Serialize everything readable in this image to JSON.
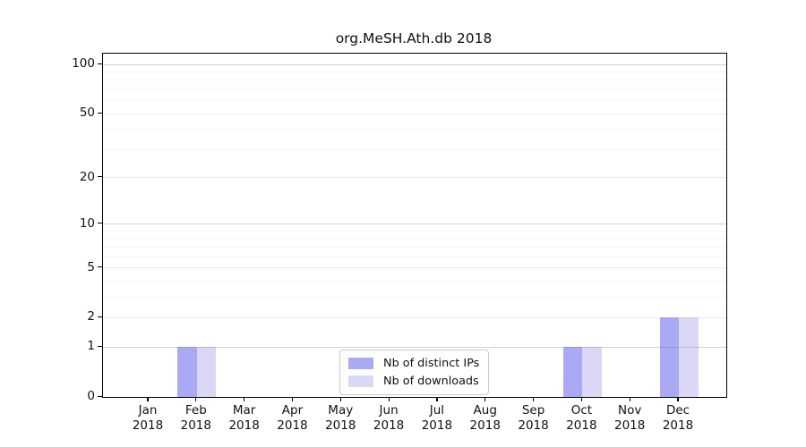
{
  "chart_data": {
    "type": "bar",
    "title": "org.MeSH.Ath.db 2018",
    "categories": [
      "Jan",
      "Feb",
      "Mar",
      "Apr",
      "May",
      "Jun",
      "Jul",
      "Aug",
      "Sep",
      "Oct",
      "Nov",
      "Dec"
    ],
    "year_label": "2018",
    "series": [
      {
        "name": "Nb of distinct IPs",
        "color": "#a9a9f4",
        "values": [
          0,
          1,
          0,
          0,
          0,
          0,
          0,
          0,
          0,
          1,
          0,
          2
        ]
      },
      {
        "name": "Nb of downloads",
        "color": "#d9d9f7",
        "values": [
          0,
          1,
          0,
          0,
          0,
          0,
          0,
          0,
          0,
          1,
          0,
          2
        ]
      }
    ],
    "xlabel": "",
    "ylabel": "",
    "y_scale": "log1p",
    "ylim": [
      0,
      116
    ],
    "y_tick_labels": [
      "0",
      "1",
      "2",
      "5",
      "10",
      "20",
      "50",
      "100"
    ],
    "y_tick_values": [
      0,
      1,
      2,
      5,
      10,
      20,
      50,
      100
    ],
    "y_gridlines_decade": [
      1,
      10,
      100
    ],
    "y_gridlines_sub": [
      2,
      5,
      20,
      50
    ],
    "y_gridlines_minor": [
      3,
      4,
      6,
      7,
      8,
      9,
      30,
      40,
      60,
      70,
      80,
      90
    ],
    "grid": "on",
    "legend_position": "lower center"
  },
  "colors": {
    "background": "#ffffff",
    "axis": "#000000",
    "bar_distinct_ips": "#a9a9f4",
    "bar_downloads": "#d9d9f7",
    "legend_border": "#cbcbcb"
  }
}
